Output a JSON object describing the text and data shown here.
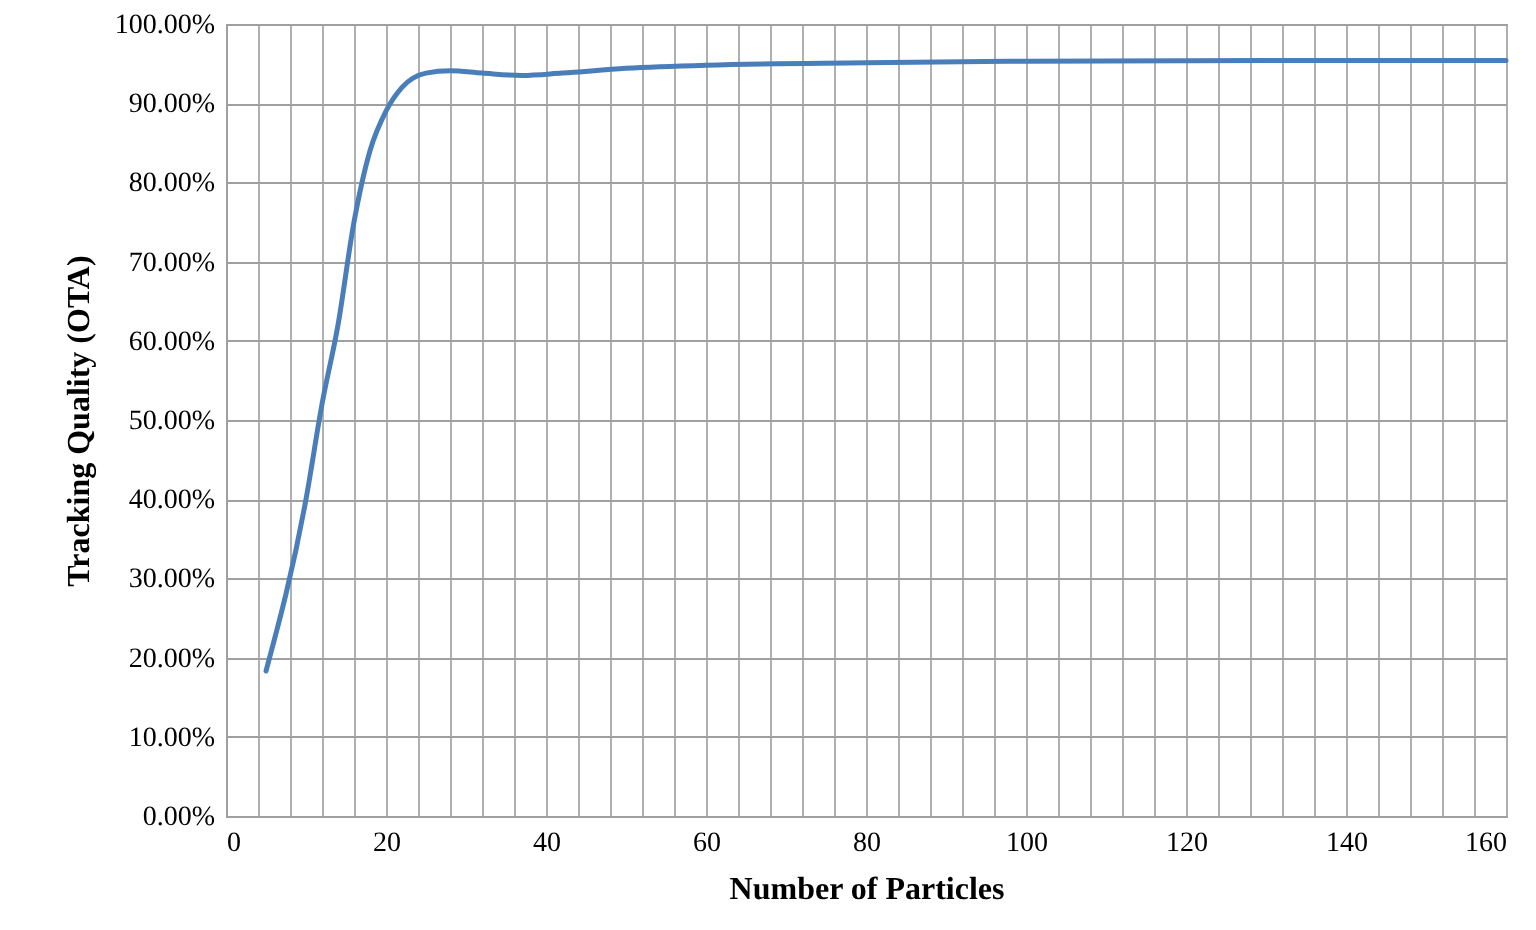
{
  "chart_data": {
    "type": "line",
    "xlabel": "Number of Particles",
    "ylabel": "Tracking Quality (OTA)",
    "x": [
      5,
      10,
      12,
      14,
      16,
      18,
      20,
      22,
      25,
      28,
      32,
      37,
      42,
      50,
      60,
      80,
      100,
      130,
      160
    ],
    "series": [
      {
        "color": "#4a7ebb",
        "values": [
          18.3,
          40,
          52,
          62,
          75,
          84,
          89,
          92,
          93.8,
          94.1,
          93.8,
          93.5,
          93.8,
          94.4,
          94.8,
          95.1,
          95.3,
          95.4,
          95.4
        ]
      }
    ],
    "xlim": [
      0,
      160
    ],
    "xticks": [
      0,
      {
        "value": 4,
        "label": null
      },
      {
        "value": 8,
        "label": null
      },
      {
        "value": 12,
        "label": null
      },
      {
        "value": 16,
        "label": null
      },
      20,
      {
        "value": 24,
        "label": null
      },
      {
        "value": 28,
        "label": null
      },
      {
        "value": 32,
        "label": null
      },
      {
        "value": 36,
        "label": null
      },
      40,
      {
        "value": 44,
        "label": null
      },
      {
        "value": 48,
        "label": null
      },
      {
        "value": 52,
        "label": null
      },
      {
        "value": 56,
        "label": null
      },
      60,
      {
        "value": 64,
        "label": null
      },
      {
        "value": 68,
        "label": null
      },
      {
        "value": 72,
        "label": null
      },
      {
        "value": 76,
        "label": null
      },
      80,
      {
        "value": 84,
        "label": null
      },
      {
        "value": 88,
        "label": null
      },
      {
        "value": 92,
        "label": null
      },
      {
        "value": 96,
        "label": null
      },
      100,
      {
        "value": 104,
        "label": null
      },
      {
        "value": 108,
        "label": null
      },
      {
        "value": 112,
        "label": null
      },
      {
        "value": 116,
        "label": null
      },
      120,
      {
        "value": 124,
        "label": null
      },
      {
        "value": 128,
        "label": null
      },
      {
        "value": 132,
        "label": null
      },
      {
        "value": 136,
        "label": null
      },
      140,
      {
        "value": 144,
        "label": null
      },
      {
        "value": 148,
        "label": null
      },
      {
        "value": 152,
        "label": null
      },
      {
        "value": 156,
        "label": null
      },
      160
    ],
    "ylim": [
      0,
      100
    ],
    "yticks": [
      {
        "value": 0,
        "label": "0.00%"
      },
      {
        "value": 10,
        "label": "10.00%"
      },
      {
        "value": 20,
        "label": "20.00%"
      },
      {
        "value": 30,
        "label": "30.00%"
      },
      {
        "value": 40,
        "label": "40.00%"
      },
      {
        "value": 50,
        "label": "50.00%"
      },
      {
        "value": 60,
        "label": "60.00%"
      },
      {
        "value": 70,
        "label": "70.00%"
      },
      {
        "value": 80,
        "label": "80.00%"
      },
      {
        "value": 90,
        "label": "90.00%"
      },
      {
        "value": 100,
        "label": "100.00%"
      }
    ],
    "grid": true,
    "line_style": "solid",
    "marker": "none"
  }
}
